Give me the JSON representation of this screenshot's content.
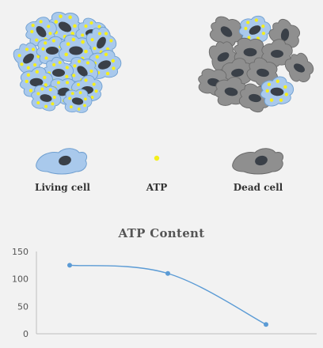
{
  "legend": {
    "living_label": "Living cell",
    "atp_label": "ATP",
    "dead_label": "Dead cell"
  },
  "colors": {
    "living_cell": "#a9c9ec",
    "living_cell_outline": "#6f9fd0",
    "dead_cell": "#8f8f8f",
    "dead_cell_outline": "#6b6b6b",
    "nucleus": "#3a4048",
    "atp": "#f4ef1c",
    "line": "#5b9bd5",
    "background": "#f2f2f2"
  },
  "icons": [
    "living-cell-cluster",
    "mixed-cell-cluster",
    "living-cell-icon",
    "atp-dot-icon",
    "dead-cell-icon"
  ],
  "chart_data": {
    "type": "line",
    "title": "ATP Content",
    "xlabel": "",
    "ylabel": "",
    "ylim": [
      0,
      150
    ],
    "yticks": [
      0,
      50,
      100,
      150
    ],
    "x": [
      1,
      2,
      3
    ],
    "series": [
      {
        "values": [
          125,
          110,
          17
        ]
      }
    ],
    "smooth": true,
    "markers": true,
    "grid": false
  }
}
